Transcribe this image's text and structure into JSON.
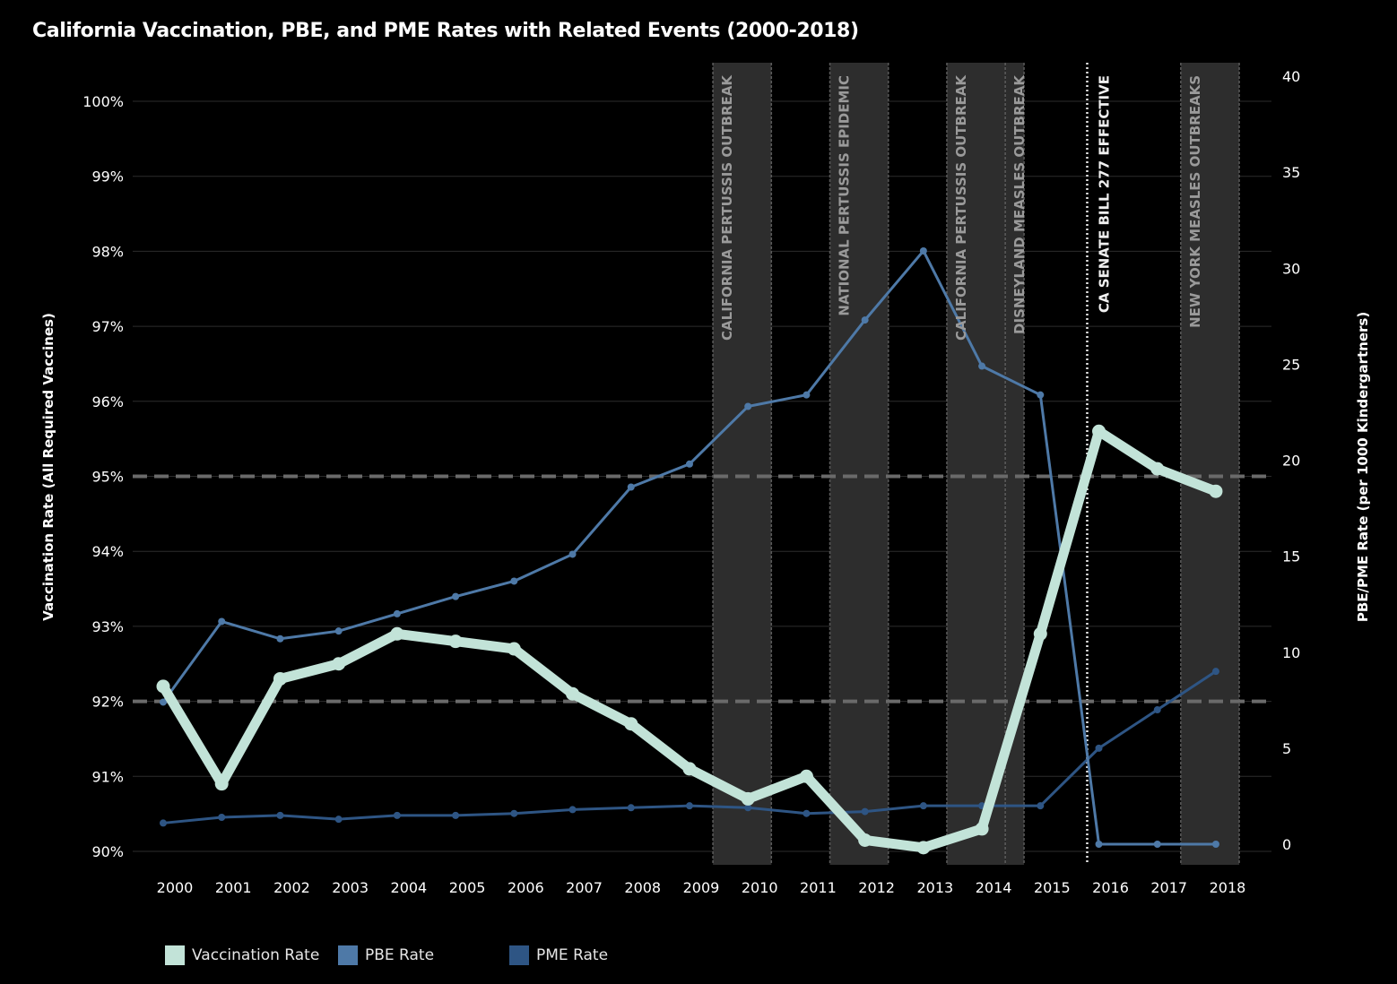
{
  "chart_data": {
    "type": "line",
    "title": "California Vaccination, PBE, and PME Rates with Related Events (2000-2018)",
    "xlabel": "",
    "ylabel_left": "Vaccination Rate (All Required Vaccines)",
    "ylabel_right": "PBE/PME Rate (per 1000 Kindergartners)",
    "categories": [
      "2000",
      "2001",
      "2002",
      "2003",
      "2004",
      "2005",
      "2006",
      "2007",
      "2008",
      "2009",
      "2010",
      "2011",
      "2012",
      "2013",
      "2014",
      "2015",
      "2016",
      "2017",
      "2018"
    ],
    "ylim_left": [
      90,
      100
    ],
    "yticks_left": [
      "90%",
      "91%",
      "92%",
      "93%",
      "94%",
      "95%",
      "96%",
      "97%",
      "98%",
      "99%",
      "100%"
    ],
    "ylim_right": [
      0,
      40
    ],
    "yticks_right": [
      "0",
      "5",
      "10",
      "15",
      "20",
      "25",
      "30",
      "35",
      "40"
    ],
    "grid": true,
    "legend_position": "bottom-left",
    "series": [
      {
        "name": "Vaccination Rate",
        "axis": "left",
        "color": "#c2e3d8",
        "values": [
          92.2,
          90.9,
          92.3,
          92.5,
          92.9,
          92.8,
          92.7,
          92.1,
          91.7,
          91.1,
          90.7,
          91.0,
          90.15,
          90.05,
          90.3,
          92.9,
          95.6,
          95.1,
          94.8
        ]
      },
      {
        "name": "PBE Rate",
        "axis": "right",
        "color": "#4e79a7",
        "values": [
          7.4,
          11.6,
          10.7,
          11.1,
          12.0,
          12.9,
          13.7,
          15.1,
          18.6,
          19.8,
          22.8,
          23.4,
          27.3,
          30.9,
          24.9,
          23.4,
          0,
          0,
          0
        ]
      },
      {
        "name": "PME Rate",
        "axis": "right",
        "color": "#2e5584",
        "values": [
          1.1,
          1.4,
          1.5,
          1.3,
          1.5,
          1.5,
          1.6,
          1.8,
          1.9,
          2.0,
          1.9,
          1.6,
          1.7,
          2.0,
          2.0,
          2.0,
          5.0,
          7.0,
          9.0
        ]
      }
    ],
    "reference_lines_left": [
      95,
      92
    ],
    "events": [
      {
        "label": "CALIFORNIA PERTUSSIS OUTBREAK",
        "start": 2009.4,
        "end": 2010.4
      },
      {
        "label": "NATIONAL PERTUSSIS EPIDEMIC",
        "start": 2011.4,
        "end": 2012.4
      },
      {
        "label": "CALIFORNIA PERTUSSIS OUTBREAK",
        "start": 2013.4,
        "end": 2014.4
      },
      {
        "label": "DISNEYLAND MEASLES OUTBREAK",
        "start": 2014.4,
        "end": 2014.72
      },
      {
        "label": "CA SENATE BILL 277 EFFECTIVE",
        "at": 2015.8,
        "style": "line"
      },
      {
        "label": "NEW YORK MEASLES OUTBREAKS",
        "start": 2017.4,
        "end": 2018.4
      }
    ],
    "colors": {
      "background": "#000000",
      "band": "#2d2d2d",
      "band_border": "#5a5a5a",
      "band_text": "#9a9a9a",
      "grid": "#2c2c2c",
      "reference_line": "#6a6a6a",
      "axis_text": "#ffffff"
    }
  }
}
